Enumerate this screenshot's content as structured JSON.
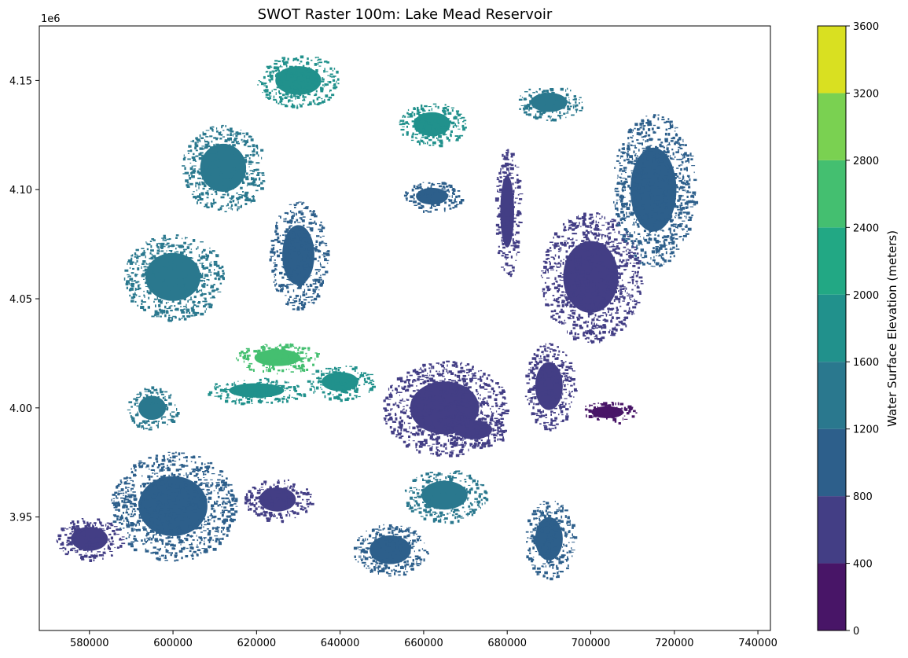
{
  "chart_data": {
    "type": "heatmap",
    "title": "SWOT Raster 100m: Lake Mead Reservoir",
    "xlabel": "",
    "ylabel": "",
    "y_offset_label": "1e6",
    "xlim": [
      568000,
      743000
    ],
    "ylim": [
      3.898,
      4.175
    ],
    "x_ticks": [
      580000,
      600000,
      620000,
      640000,
      660000,
      680000,
      700000,
      720000,
      740000
    ],
    "x_tick_labels": [
      "580000",
      "600000",
      "620000",
      "640000",
      "660000",
      "680000",
      "700000",
      "720000",
      "740000"
    ],
    "y_ticks": [
      3.95,
      4.0,
      4.05,
      4.1,
      4.15
    ],
    "y_tick_labels": [
      "3.95",
      "4.00",
      "4.05",
      "4.10",
      "4.15"
    ],
    "grid": false,
    "colorbar": {
      "label": "Water Surface Elevation (meters)",
      "boundaries": [
        0,
        400,
        800,
        1200,
        1600,
        2000,
        2400,
        2800,
        3200,
        3600
      ],
      "tick_labels": [
        "0",
        "400",
        "800",
        "1200",
        "1600",
        "2000",
        "2400",
        "2800",
        "3200",
        "3600"
      ],
      "colors": [
        "#481567",
        "#433e85",
        "#2d5f8b",
        "#2a788e",
        "#21918c",
        "#22a884",
        "#44bf70",
        "#7ad151",
        "#d9e021"
      ]
    },
    "regions": [
      {
        "x": 704000,
        "y": 3.998,
        "rx": 7000,
        "ry": 0.005,
        "value": 200
      },
      {
        "x": 665000,
        "y": 4.0,
        "rx": 15000,
        "ry": 0.022,
        "value": 600
      },
      {
        "x": 672000,
        "y": 3.99,
        "rx": 8000,
        "ry": 0.008,
        "value": 600
      },
      {
        "x": 625000,
        "y": 3.958,
        "rx": 8000,
        "ry": 0.01,
        "value": 700
      },
      {
        "x": 662000,
        "y": 4.097,
        "rx": 7000,
        "ry": 0.007,
        "value": 1000
      },
      {
        "x": 652000,
        "y": 3.935,
        "rx": 9000,
        "ry": 0.012,
        "value": 900
      },
      {
        "x": 690000,
        "y": 4.14,
        "rx": 8000,
        "ry": 0.008,
        "value": 1500
      },
      {
        "x": 625000,
        "y": 4.023,
        "rx": 10000,
        "ry": 0.007,
        "value": 2500
      },
      {
        "x": 620000,
        "y": 4.008,
        "rx": 12000,
        "ry": 0.006,
        "value": 1900
      },
      {
        "x": 640000,
        "y": 4.012,
        "rx": 8000,
        "ry": 0.008,
        "value": 1700
      },
      {
        "x": 662000,
        "y": 4.13,
        "rx": 8000,
        "ry": 0.01,
        "value": 1800
      },
      {
        "x": 612000,
        "y": 4.11,
        "rx": 10000,
        "ry": 0.02,
        "value": 1400
      },
      {
        "x": 600000,
        "y": 3.955,
        "rx": 15000,
        "ry": 0.025,
        "value": 1100
      },
      {
        "x": 700000,
        "y": 4.06,
        "rx": 12000,
        "ry": 0.03,
        "value": 700
      },
      {
        "x": 715000,
        "y": 4.1,
        "rx": 10000,
        "ry": 0.035,
        "value": 1000
      },
      {
        "x": 690000,
        "y": 4.01,
        "rx": 6000,
        "ry": 0.02,
        "value": 500
      },
      {
        "x": 630000,
        "y": 4.07,
        "rx": 7000,
        "ry": 0.025,
        "value": 1100
      },
      {
        "x": 595000,
        "y": 4.0,
        "rx": 6000,
        "ry": 0.01,
        "value": 1200
      },
      {
        "x": 630000,
        "y": 4.15,
        "rx": 10000,
        "ry": 0.012,
        "value": 1700
      },
      {
        "x": 665000,
        "y": 3.96,
        "rx": 10000,
        "ry": 0.012,
        "value": 1400
      },
      {
        "x": 580000,
        "y": 3.94,
        "rx": 8000,
        "ry": 0.01,
        "value": 700
      },
      {
        "x": 690000,
        "y": 3.94,
        "rx": 6000,
        "ry": 0.018,
        "value": 900
      },
      {
        "x": 680000,
        "y": 4.09,
        "rx": 3000,
        "ry": 0.03,
        "value": 600
      },
      {
        "x": 600000,
        "y": 4.06,
        "rx": 12000,
        "ry": 0.02,
        "value": 1300
      }
    ]
  }
}
